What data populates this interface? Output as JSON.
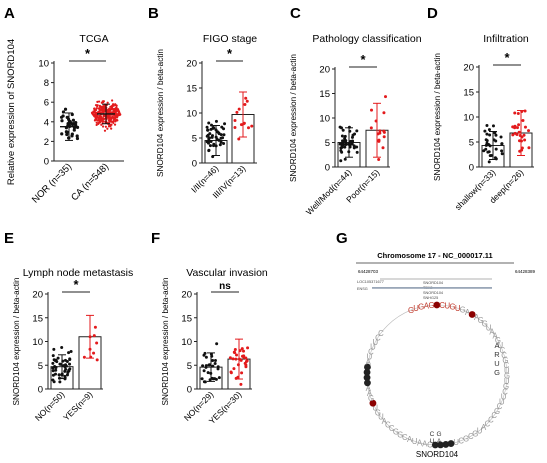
{
  "colors": {
    "black": "#111111",
    "red": "#e31a1c",
    "grey": "#666666",
    "genebar": "#9aa7b8"
  },
  "panels": [
    {
      "letter": "A",
      "title": "TCGA",
      "ylabel": "Relative expression of SNORD104",
      "ylim": [
        0,
        10
      ],
      "ticks": [
        0,
        2,
        4,
        6,
        8,
        10
      ],
      "groups": [
        {
          "label": "NOR (n=35)",
          "n": 35,
          "mean": 3.5,
          "sd": 1.4,
          "style": "dots",
          "color": "black",
          "errcolor": "black"
        },
        {
          "label": "CA (n=548)",
          "n": 548,
          "mean": 4.8,
          "sd": 1.0,
          "style": "dots",
          "color": "red",
          "errcolor": "black"
        }
      ],
      "sig": "*"
    },
    {
      "letter": "B",
      "title": "FIGO stage",
      "ylabel": "SNORD104 expression / beta-actin",
      "ylim": [
        0,
        20
      ],
      "ticks": [
        0,
        5,
        10,
        15,
        20
      ],
      "groups": [
        {
          "label": "I/II(n=46)",
          "n": 46,
          "mean": 4.5,
          "sd": 3.0,
          "style": "bar",
          "color": "black",
          "errcolor": "black"
        },
        {
          "label": "III/IV(n=13)",
          "n": 13,
          "mean": 9.7,
          "sd": 4.5,
          "style": "bar",
          "color": "red",
          "errcolor": "red"
        }
      ],
      "sig": "*"
    },
    {
      "letter": "C",
      "title": "Pathology classification",
      "ylabel": "SNORD104 expression / beta-actin",
      "ylim": [
        0,
        20
      ],
      "ticks": [
        0,
        5,
        10,
        15,
        20
      ],
      "groups": [
        {
          "label": "Well/Mod(n=44)",
          "n": 44,
          "mean": 5.0,
          "sd": 3.0,
          "style": "bar",
          "color": "black",
          "errcolor": "black"
        },
        {
          "label": "Poor(n=15)",
          "n": 15,
          "mean": 7.5,
          "sd": 5.5,
          "style": "bar",
          "color": "red",
          "errcolor": "red"
        }
      ],
      "sig": "*"
    },
    {
      "letter": "D",
      "title": "Infiltration",
      "ylabel": "SNORD104 expression / beta-actin",
      "ylim": [
        0,
        20
      ],
      "ticks": [
        0,
        5,
        10,
        15,
        20
      ],
      "groups": [
        {
          "label": "shallow(n=33)",
          "n": 33,
          "mean": 4.3,
          "sd": 2.8,
          "style": "bar",
          "color": "black",
          "errcolor": "black"
        },
        {
          "label": "deep(n=26)",
          "n": 26,
          "mean": 6.8,
          "sd": 4.5,
          "style": "bar",
          "color": "red",
          "errcolor": "red"
        }
      ],
      "sig": "*"
    },
    {
      "letter": "E",
      "title": "Lymph node metastasis",
      "ylabel": "SNORD104 expression / beta-actin",
      "ylim": [
        0,
        20
      ],
      "ticks": [
        0,
        5,
        10,
        15,
        20
      ],
      "groups": [
        {
          "label": "NO(n=50)",
          "n": 50,
          "mean": 4.7,
          "sd": 2.5,
          "style": "bar",
          "color": "black",
          "errcolor": "black"
        },
        {
          "label": "YES(n=9)",
          "n": 9,
          "mean": 11.0,
          "sd": 4.5,
          "style": "bar",
          "color": "red",
          "errcolor": "red"
        }
      ],
      "sig": "*"
    },
    {
      "letter": "F",
      "title": "Vascular invasion",
      "ylabel": "SNORD104 expression / beta-actin",
      "ylim": [
        0,
        20
      ],
      "ticks": [
        0,
        5,
        10,
        15,
        20
      ],
      "groups": [
        {
          "label": "NO(n=29)",
          "n": 29,
          "mean": 4.6,
          "sd": 3.0,
          "style": "bar",
          "color": "black",
          "errcolor": "black"
        },
        {
          "label": "YES(n=30)",
          "n": 30,
          "mean": 6.3,
          "sd": 4.2,
          "style": "bar",
          "color": "red",
          "errcolor": "red"
        }
      ],
      "sig": "ns"
    }
  ],
  "panel_g": {
    "letter": "G",
    "chrom_title": "Chromosome 17 - NC_000017.11",
    "left_coord": "64428703",
    "right_coord": "64428389",
    "gene_labels": [
      "LOC105371677",
      "ENSG",
      "SNORD104",
      "TEX2",
      "SNORD104",
      "SNHG25"
    ],
    "sequence": "GUGAGACUGUGAUAGGUAAGUCCGCUGUGCUUCGCCCAUGCGCUUCACCAAUACGGCCAUGUGGAAUCCCAUCUUCC",
    "seq_highlight_red": "GUUAGACUGU",
    "seq_right_letters": [
      "A",
      "R",
      "U",
      "G"
    ],
    "bottom_letters": [
      "C",
      "G",
      "U",
      "A"
    ],
    "caption": "SNORD104"
  },
  "chart_data": [
    {
      "type": "scatter",
      "panel": "A",
      "title": "TCGA",
      "xlabel": "",
      "ylabel": "Relative expression of SNORD104",
      "ylim": [
        0,
        10
      ],
      "categories": [
        "NOR (n=35)",
        "CA (n=548)"
      ],
      "series": [
        {
          "name": "mean",
          "values": [
            3.5,
            4.8
          ]
        },
        {
          "name": "sd",
          "values": [
            1.4,
            1.0
          ]
        }
      ]
    },
    {
      "type": "bar",
      "panel": "B",
      "title": "FIGO stage",
      "xlabel": "",
      "ylabel": "SNORD104 expression / beta-actin",
      "ylim": [
        0,
        20
      ],
      "categories": [
        "I/II(n=46)",
        "III/IV(n=13)"
      ],
      "series": [
        {
          "name": "mean",
          "values": [
            4.5,
            9.7
          ]
        },
        {
          "name": "sd",
          "values": [
            3.0,
            4.5
          ]
        }
      ]
    },
    {
      "type": "bar",
      "panel": "C",
      "title": "Pathology classification",
      "xlabel": "",
      "ylabel": "SNORD104 expression / beta-actin",
      "ylim": [
        0,
        20
      ],
      "categories": [
        "Well/Mod(n=44)",
        "Poor(n=15)"
      ],
      "series": [
        {
          "name": "mean",
          "values": [
            5.0,
            7.5
          ]
        },
        {
          "name": "sd",
          "values": [
            3.0,
            5.5
          ]
        }
      ]
    },
    {
      "type": "bar",
      "panel": "D",
      "title": "Infiltration",
      "xlabel": "",
      "ylabel": "SNORD104 expression / beta-actin",
      "ylim": [
        0,
        20
      ],
      "categories": [
        "shallow(n=33)",
        "deep(n=26)"
      ],
      "series": [
        {
          "name": "mean",
          "values": [
            4.3,
            6.8
          ]
        },
        {
          "name": "sd",
          "values": [
            2.8,
            4.5
          ]
        }
      ]
    },
    {
      "type": "bar",
      "panel": "E",
      "title": "Lymph node metastasis",
      "xlabel": "",
      "ylabel": "SNORD104 expression / beta-actin",
      "ylim": [
        0,
        20
      ],
      "categories": [
        "NO(n=50)",
        "YES(n=9)"
      ],
      "series": [
        {
          "name": "mean",
          "values": [
            4.7,
            11.0
          ]
        },
        {
          "name": "sd",
          "values": [
            2.5,
            4.5
          ]
        }
      ]
    },
    {
      "type": "bar",
      "panel": "F",
      "title": "Vascular invasion",
      "xlabel": "",
      "ylabel": "SNORD104 expression / beta-actin",
      "ylim": [
        0,
        20
      ],
      "categories": [
        "NO(n=29)",
        "YES(n=30)"
      ],
      "series": [
        {
          "name": "mean",
          "values": [
            4.6,
            6.3
          ]
        },
        {
          "name": "sd",
          "values": [
            3.0,
            4.2
          ]
        }
      ]
    }
  ]
}
